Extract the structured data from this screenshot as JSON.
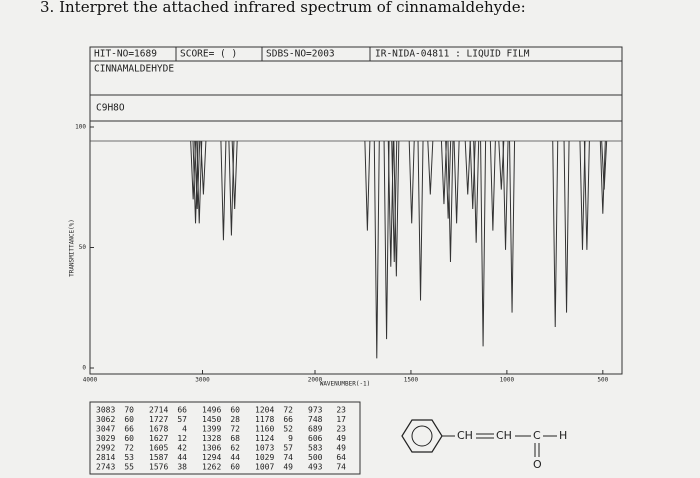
{
  "question": "3. Interpret the attached infrared spectrum of cinnamaldehyde:",
  "header": {
    "hit": "HIT-NO=1689",
    "score": "SCORE= (   )",
    "sdbs": "SDBS-NO=2003",
    "ir": "IR-NIDA-04811 : LIQUID FILM",
    "name": "CINNAMALDEHYDE",
    "formula": "C9H8O"
  },
  "spectrum": {
    "y_label": "TRANSMITTANCE(%)",
    "x_label": "WAVENUMBER(-1)",
    "xlim": [
      4000,
      400
    ],
    "ylim": [
      0,
      100
    ],
    "xticks": [
      4000,
      3000,
      2000,
      1500,
      1000,
      500
    ],
    "yticks": [
      0,
      50,
      100
    ],
    "peaks": [
      [
        3083,
        70
      ],
      [
        3062,
        60
      ],
      [
        3047,
        66
      ],
      [
        3029,
        60
      ],
      [
        2992,
        72
      ],
      [
        2814,
        53
      ],
      [
        2743,
        55
      ],
      [
        2714,
        66
      ],
      [
        1727,
        57
      ],
      [
        1678,
        4
      ],
      [
        1627,
        12
      ],
      [
        1605,
        42
      ],
      [
        1587,
        44
      ],
      [
        1576,
        38
      ],
      [
        1496,
        60
      ],
      [
        1450,
        28
      ],
      [
        1399,
        72
      ],
      [
        1328,
        68
      ],
      [
        1306,
        62
      ],
      [
        1294,
        44
      ],
      [
        1262,
        60
      ],
      [
        1204,
        72
      ],
      [
        1178,
        66
      ],
      [
        1160,
        52
      ],
      [
        1124,
        9
      ],
      [
        1073,
        57
      ],
      [
        1029,
        74
      ],
      [
        1007,
        49
      ],
      [
        973,
        23
      ],
      [
        748,
        17
      ],
      [
        689,
        23
      ],
      [
        606,
        49
      ],
      [
        583,
        49
      ],
      [
        500,
        64
      ],
      [
        493,
        74
      ]
    ]
  },
  "structure": {
    "ch1": "CH",
    "ch2": "CH",
    "c": "C",
    "h": "H",
    "o": "O"
  }
}
